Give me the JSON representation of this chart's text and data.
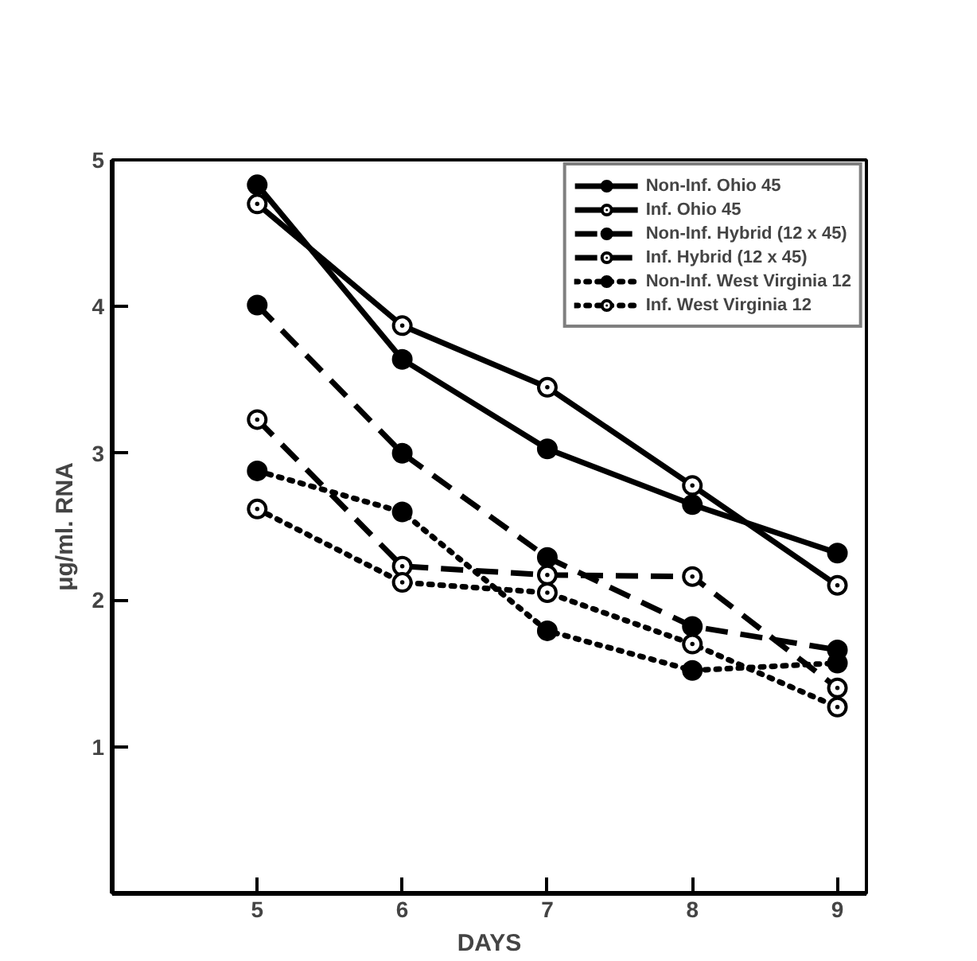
{
  "chart_data": {
    "type": "line",
    "xlabel": "DAYS",
    "ylabel": "μg/ml. RNA",
    "x": [
      5,
      6,
      7,
      8,
      9
    ],
    "xlim": [
      4,
      9.2
    ],
    "xticks": [
      5,
      6,
      7,
      8,
      9
    ],
    "ylim": [
      0,
      5
    ],
    "yticks": [
      1,
      2,
      3,
      4,
      5
    ],
    "legend": "top right",
    "grid": false,
    "series": [
      {
        "name": "Non-Inf. Ohio 45",
        "color": "#000000",
        "marker": "circle",
        "line_style": "solid",
        "values": [
          4.83,
          3.64,
          3.03,
          2.65,
          2.32
        ]
      },
      {
        "name": "Inf. Ohio 45",
        "color": "#000000",
        "marker": "circle_dot",
        "line_style": "solid",
        "values": [
          4.7,
          3.87,
          3.45,
          2.78,
          2.1
        ]
      },
      {
        "name": "Non-Inf. Hybrid (12 x 45)",
        "color": "#000000",
        "marker": "circle",
        "line_style": "dashed",
        "values": [
          4.01,
          3.0,
          2.29,
          1.82,
          1.66
        ]
      },
      {
        "name": "Inf. Hybrid (12 x 45)",
        "color": "#000000",
        "marker": "circle_dot",
        "line_style": "dashed",
        "values": [
          3.23,
          2.23,
          2.17,
          2.16,
          1.4
        ]
      },
      {
        "name": "Non-Inf. West Virginia 12",
        "color": "#000000",
        "marker": "circle",
        "line_style": "dotted",
        "values": [
          2.88,
          2.6,
          1.79,
          1.52,
          1.57
        ]
      },
      {
        "name": "Inf. West Virginia 12",
        "color": "#000000",
        "marker": "circle_dot",
        "line_style": "dotted",
        "values": [
          2.62,
          2.12,
          2.05,
          1.7,
          1.27
        ]
      }
    ]
  }
}
